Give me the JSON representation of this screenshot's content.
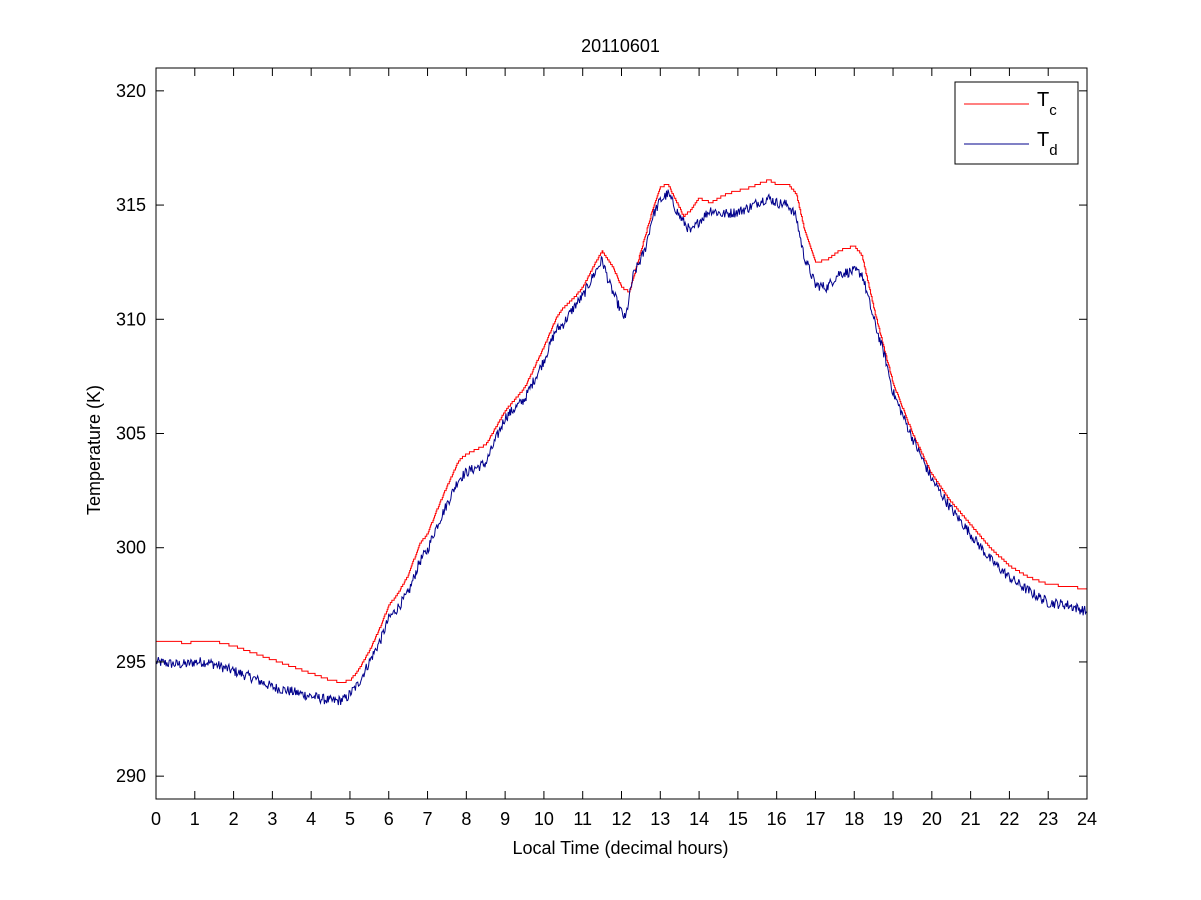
{
  "chart_data": {
    "type": "line",
    "title": "20110601",
    "xlabel": "Local Time (decimal hours)",
    "ylabel": "Temperature (K)",
    "xlim": [
      0,
      24
    ],
    "ylim": [
      289,
      321
    ],
    "xticks": [
      0,
      1,
      2,
      3,
      4,
      5,
      6,
      7,
      8,
      9,
      10,
      11,
      12,
      13,
      14,
      15,
      16,
      17,
      18,
      19,
      20,
      21,
      22,
      23,
      24
    ],
    "yticks": [
      290,
      295,
      300,
      305,
      310,
      315,
      320
    ],
    "grid": false,
    "legend_position": "top-right",
    "series": [
      {
        "name": "T",
        "subscript": "c",
        "color": "#ff0000",
        "x": [
          0,
          0.5,
          0.8,
          1.0,
          1.5,
          2.0,
          2.5,
          3.0,
          3.5,
          4.0,
          4.5,
          4.8,
          5.0,
          5.2,
          5.5,
          5.8,
          6.0,
          6.2,
          6.5,
          6.8,
          7.0,
          7.2,
          7.5,
          7.8,
          8.0,
          8.5,
          9.0,
          9.5,
          10.0,
          10.3,
          10.5,
          10.8,
          11.0,
          11.3,
          11.5,
          11.8,
          12.0,
          12.2,
          12.5,
          12.8,
          13.0,
          13.2,
          13.4,
          13.6,
          13.8,
          14.0,
          14.3,
          14.6,
          14.9,
          15.2,
          15.5,
          15.8,
          16.0,
          16.3,
          16.5,
          16.7,
          17.0,
          17.3,
          17.6,
          18.0,
          18.2,
          18.5,
          18.8,
          19.0,
          19.5,
          20.0,
          20.5,
          21.0,
          21.5,
          22.0,
          22.5,
          23.0,
          23.5,
          24.0
        ],
        "y": [
          295.9,
          295.9,
          295.8,
          295.9,
          295.9,
          295.7,
          295.4,
          295.1,
          294.8,
          294.5,
          294.2,
          294.1,
          294.2,
          294.6,
          295.5,
          296.6,
          297.5,
          297.9,
          298.8,
          300.2,
          300.6,
          301.5,
          302.7,
          303.8,
          304.1,
          304.5,
          306.0,
          307.0,
          308.8,
          310.0,
          310.5,
          311.0,
          311.4,
          312.4,
          313.0,
          312.2,
          311.4,
          311.2,
          313.0,
          314.8,
          315.8,
          315.9,
          315.2,
          314.5,
          314.8,
          315.3,
          315.1,
          315.4,
          315.6,
          315.7,
          315.9,
          316.1,
          315.9,
          315.9,
          315.5,
          314.0,
          312.5,
          312.6,
          313.0,
          313.2,
          312.8,
          310.5,
          308.5,
          307.2,
          305.0,
          303.2,
          302.0,
          301.0,
          300.0,
          299.2,
          298.7,
          298.4,
          298.3,
          298.2
        ]
      },
      {
        "name": "T",
        "subscript": "d",
        "color": "#00008b",
        "x": [
          0,
          0.5,
          0.8,
          1.0,
          1.3,
          1.5,
          2.0,
          2.5,
          3.0,
          3.5,
          4.0,
          4.5,
          4.7,
          4.9,
          5.0,
          5.2,
          5.5,
          5.8,
          6.0,
          6.2,
          6.5,
          6.8,
          7.0,
          7.2,
          7.5,
          7.8,
          8.0,
          8.5,
          9.0,
          9.5,
          10.0,
          10.3,
          10.5,
          10.8,
          11.0,
          11.3,
          11.5,
          11.7,
          12.0,
          12.1,
          12.3,
          12.6,
          12.8,
          13.0,
          13.2,
          13.5,
          13.8,
          14.0,
          14.3,
          14.6,
          15.0,
          15.3,
          15.6,
          15.8,
          16.0,
          16.3,
          16.5,
          16.7,
          17.0,
          17.3,
          17.6,
          18.0,
          18.2,
          18.5,
          18.8,
          19.0,
          19.5,
          20.0,
          20.5,
          21.0,
          21.5,
          22.0,
          22.5,
          23.0,
          23.5,
          24.0
        ],
        "y": [
          295.0,
          294.9,
          294.9,
          295.0,
          295.0,
          294.9,
          294.6,
          294.3,
          293.9,
          293.7,
          293.5,
          293.3,
          293.3,
          293.4,
          293.6,
          294.0,
          295.0,
          296.0,
          296.9,
          297.3,
          298.0,
          299.4,
          299.9,
          300.8,
          301.9,
          303.0,
          303.3,
          303.7,
          305.7,
          306.5,
          308.2,
          309.5,
          309.8,
          310.6,
          311.0,
          312.0,
          312.6,
          311.5,
          310.3,
          310.0,
          311.9,
          313.0,
          314.5,
          315.2,
          315.5,
          314.5,
          313.8,
          314.3,
          314.8,
          314.6,
          314.7,
          314.9,
          315.2,
          315.3,
          315.1,
          315.0,
          314.5,
          312.8,
          311.5,
          311.4,
          312.0,
          312.1,
          312.0,
          310.0,
          308.3,
          306.8,
          304.8,
          303.0,
          301.7,
          300.6,
          299.5,
          298.7,
          298.1,
          297.6,
          297.5,
          297.2
        ]
      }
    ]
  }
}
